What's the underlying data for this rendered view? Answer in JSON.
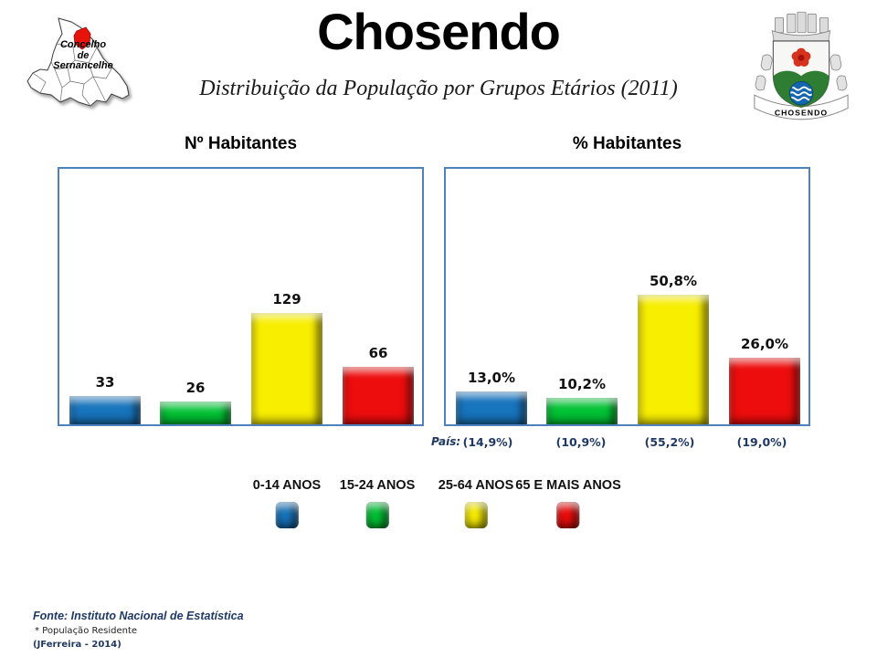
{
  "header": {
    "title": "Chosendo",
    "subtitle": "Distribuição da População por Grupos Etários (2011)",
    "map_label_lines": [
      "Concelho",
      "de",
      "Sernancelhe"
    ],
    "crest_caption": "CHOSENDO"
  },
  "chart_data": [
    {
      "type": "bar",
      "title": "Nº Habitantes",
      "categories": [
        "0-14 ANOS",
        "15-24 ANOS",
        "25-64 ANOS",
        "65 E MAIS ANOS"
      ],
      "values": [
        33,
        26,
        129,
        66
      ],
      "value_labels": [
        "33",
        "26",
        "129",
        "66"
      ],
      "xlabel": "",
      "ylabel": "",
      "ylim": [
        0,
        295
      ],
      "grid": false,
      "bar_colors": [
        "#1874bc",
        "#00c234",
        "#f8ee00",
        "#ee0d0d"
      ]
    },
    {
      "type": "bar",
      "title": "% Habitantes",
      "categories": [
        "0-14 ANOS",
        "15-24 ANOS",
        "25-64 ANOS",
        "65 E MAIS ANOS"
      ],
      "values": [
        13.0,
        10.2,
        50.8,
        26.0
      ],
      "value_labels": [
        "13,0%",
        "10,2%",
        "50,8%",
        "26,0%"
      ],
      "xlabel": "",
      "ylabel": "",
      "ylim": [
        0,
        100
      ],
      "grid": false,
      "bar_colors": [
        "#1874bc",
        "#00c234",
        "#f8ee00",
        "#ee0d0d"
      ],
      "country_row": {
        "label": "País:",
        "values": [
          "(14,9%)",
          "(10,9%)",
          "(55,2%)",
          "(19,0%)"
        ]
      }
    }
  ],
  "legend": {
    "items": [
      {
        "label": "0-14 ANOS",
        "color": "#1874bc"
      },
      {
        "label": "15-24 ANOS",
        "color": "#00c234"
      },
      {
        "label": "25-64 ANOS",
        "color": "#f8ee00"
      },
      {
        "label": "65 E MAIS ANOS",
        "color": "#ee0d0d"
      }
    ]
  },
  "footer": {
    "source": "Fonte: Instituto Nacional de Estatística",
    "note": "* População Residente",
    "credit": "(JFerreira - 2014)"
  },
  "colors": {
    "panel_border": "#4f81bd",
    "navy_text": "#1f3864",
    "map_highlight": "#e8140c",
    "crest_green": "#2e7d32",
    "crest_blue": "#1467ae",
    "crest_red": "#d6321e"
  }
}
